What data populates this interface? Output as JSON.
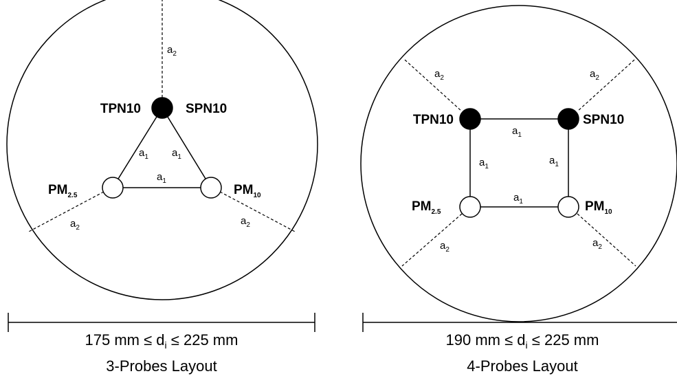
{
  "left_layout": {
    "probe_top_left_label": "TPN10",
    "probe_top_right_label": "SPN10",
    "probe_pm25_label": {
      "main": "PM",
      "sub": "2.5"
    },
    "probe_pm10_label": {
      "main": "PM",
      "sub": "10"
    },
    "spacing_a1": {
      "main": "a",
      "sub": "1"
    },
    "spacing_a2": {
      "main": "a",
      "sub": "2"
    },
    "diameter_text": {
      "before": "175 mm ≤ d",
      "sub": "i",
      "after": " ≤ 225 mm"
    },
    "caption": "3-Probes Layout"
  },
  "right_layout": {
    "probe_top_left_label": "TPN10",
    "probe_top_right_label": "SPN10",
    "probe_pm25_label": {
      "main": "PM",
      "sub": "2.5"
    },
    "probe_pm10_label": {
      "main": "PM",
      "sub": "10"
    },
    "spacing_a1": {
      "main": "a",
      "sub": "1"
    },
    "spacing_a2": {
      "main": "a",
      "sub": "2"
    },
    "diameter_text": {
      "before": "190 mm ≤ d",
      "sub": "i",
      "after": " ≤ 225 mm"
    },
    "caption": "4-Probes Layout"
  }
}
